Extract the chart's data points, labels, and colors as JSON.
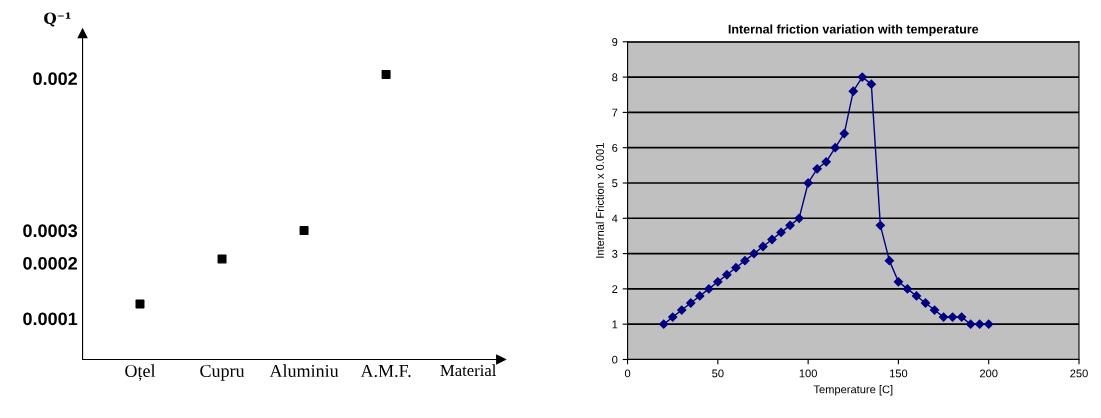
{
  "chart_data": [
    {
      "type": "scatter",
      "ylabel": "Q⁻¹",
      "xlabel": "Material",
      "categories": [
        "Oțel",
        "Cupru",
        "Aluminiu",
        "A.M.F."
      ],
      "log": "y",
      "series": [
        {
          "color": "#000000",
          "values": [
            0.00012,
            0.00021,
            0.0003,
            0.0021
          ]
        }
      ],
      "ylim": [
        6e-05,
        0.0035
      ],
      "yticks": [
        0.0001,
        0.0002,
        0.0003,
        0.002
      ],
      "marker": "square",
      "grid": false
    },
    {
      "type": "line",
      "title": "Internal friction variation with temperature",
      "xlabel": "Temperature [C]",
      "ylabel": "Internal Friction x 0.001",
      "x": [
        20,
        25,
        30,
        35,
        40,
        45,
        50,
        55,
        60,
        65,
        70,
        75,
        80,
        85,
        90,
        95,
        100,
        105,
        110,
        115,
        120,
        125,
        130,
        135,
        140,
        145,
        150,
        155,
        160,
        165,
        170,
        175,
        180,
        185,
        190,
        195,
        200
      ],
      "series": [
        {
          "color": "#000080",
          "values": [
            1,
            1.2,
            1.4,
            1.6,
            1.8,
            2,
            2.2,
            2.4,
            2.6,
            2.8,
            3,
            3.2,
            3.4,
            3.6,
            3.8,
            4,
            5,
            5.4,
            5.6,
            6,
            6.4,
            7.6,
            8,
            7.8,
            3.8,
            2.8,
            2.2,
            2,
            1.8,
            1.6,
            1.4,
            1.2,
            1.2,
            1.2,
            1,
            1,
            1
          ]
        }
      ],
      "xlim": [
        0,
        250
      ],
      "xticks": [
        0,
        50,
        100,
        150,
        200,
        250
      ],
      "ylim": [
        0,
        9
      ],
      "yticks": [
        0,
        1,
        2,
        3,
        4,
        5,
        6,
        7,
        8,
        9
      ],
      "grid": "y",
      "marker": "diamond",
      "line_style": "solid"
    }
  ]
}
